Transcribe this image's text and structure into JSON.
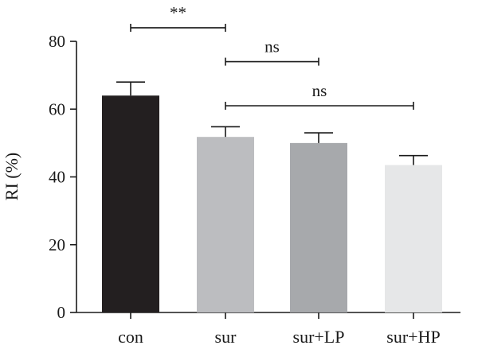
{
  "chart_data": {
    "type": "bar",
    "title": "",
    "xlabel": "",
    "ylabel": "RI (%)",
    "ylim": [
      0,
      80
    ],
    "yticks": [
      0,
      20,
      40,
      60,
      80
    ],
    "categories": [
      "con",
      "sur",
      "sur+LP",
      "sur+HP"
    ],
    "values": [
      64,
      51.8,
      50,
      43.5
    ],
    "errors": [
      4,
      3,
      3,
      2.8
    ],
    "bar_colors": [
      "#231f20",
      "#bcbdc0",
      "#a7a9ac",
      "#e6e7e8"
    ],
    "grid": false,
    "legend": "none",
    "annotations": [
      {
        "from": "con",
        "to": "sur",
        "label": "**",
        "y": 84
      },
      {
        "from": "sur",
        "to": "sur+LP",
        "label": "ns",
        "y": 74
      },
      {
        "from": "sur",
        "to": "sur+HP",
        "label": "ns",
        "y": 61
      }
    ]
  }
}
